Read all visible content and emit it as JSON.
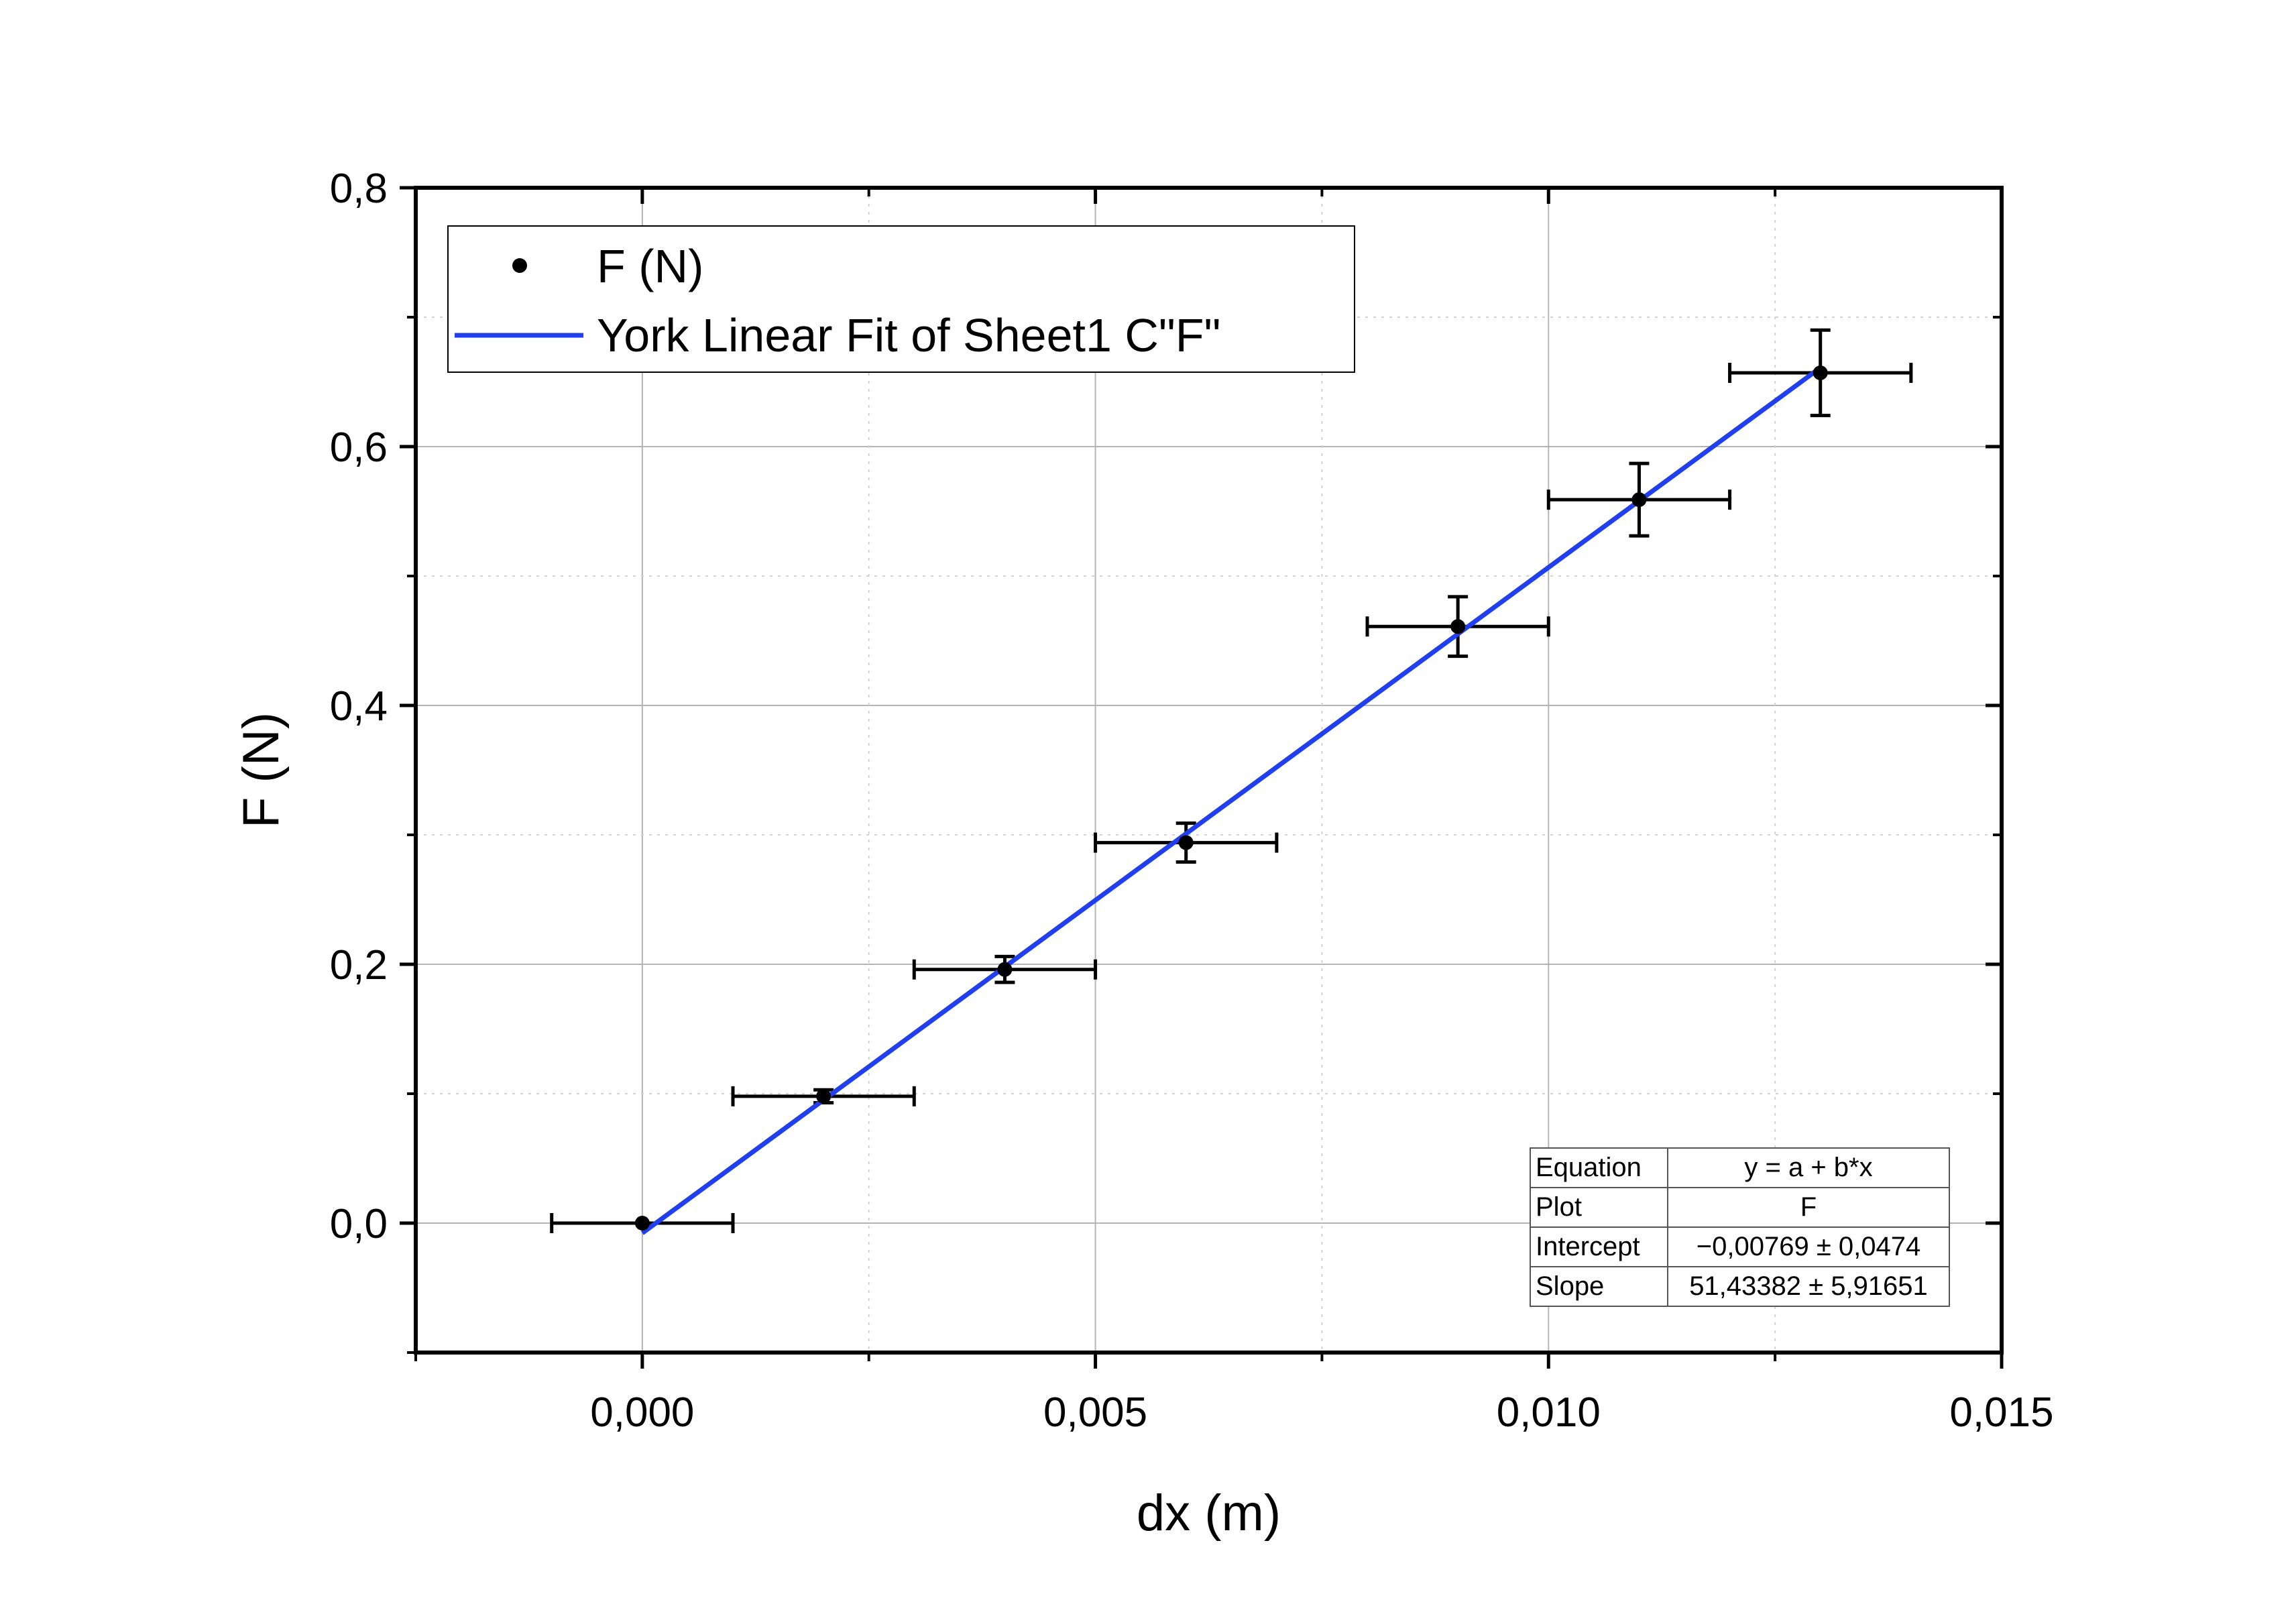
{
  "chart_data": {
    "type": "scatter",
    "xlabel": "dx (m)",
    "ylabel": "F (N)",
    "xlim": [
      -0.0025,
      0.015
    ],
    "ylim": [
      -0.1,
      0.8
    ],
    "xticks": [
      0.0,
      0.005,
      0.01,
      0.015
    ],
    "xtick_labels": [
      "0,000",
      "0,005",
      "0,010",
      "0,015"
    ],
    "xminor_ticks": [
      -0.0025,
      0.0025,
      0.0075,
      0.0125
    ],
    "yticks": [
      0.0,
      0.2,
      0.4,
      0.6,
      0.8
    ],
    "ytick_labels": [
      "0,0",
      "0,2",
      "0,4",
      "0,6",
      "0,8"
    ],
    "yminor_ticks": [
      -0.1,
      0.1,
      0.3,
      0.5,
      0.7
    ],
    "grid": true,
    "legend_position": "top-left",
    "series": [
      {
        "name": "F (N)",
        "kind": "points",
        "color": "#000000",
        "x": [
          0.0,
          0.002,
          0.004,
          0.006,
          0.009,
          0.011,
          0.013
        ],
        "y": [
          0.0,
          0.098,
          0.196,
          0.294,
          0.461,
          0.559,
          0.657
        ],
        "x_err": [
          0.001,
          0.001,
          0.001,
          0.001,
          0.001,
          0.001,
          0.001
        ],
        "y_err": [
          0.0,
          0.005,
          0.01,
          0.015,
          0.023,
          0.028,
          0.033
        ]
      },
      {
        "name": "York Linear Fit of Sheet1 C\"F\"",
        "kind": "line",
        "color": "#1f3ff0",
        "x": [
          0.0,
          0.013
        ],
        "y": [
          -0.00769,
          0.66095
        ]
      }
    ],
    "fit_table": [
      {
        "label": "Equation",
        "value": "y = a + b*x"
      },
      {
        "label": "Plot",
        "value": "F"
      },
      {
        "label": "Intercept",
        "value": "−0,00769 ± 0,0474"
      },
      {
        "label": "Slope",
        "value": "51,43382 ± 5,91651"
      }
    ]
  }
}
